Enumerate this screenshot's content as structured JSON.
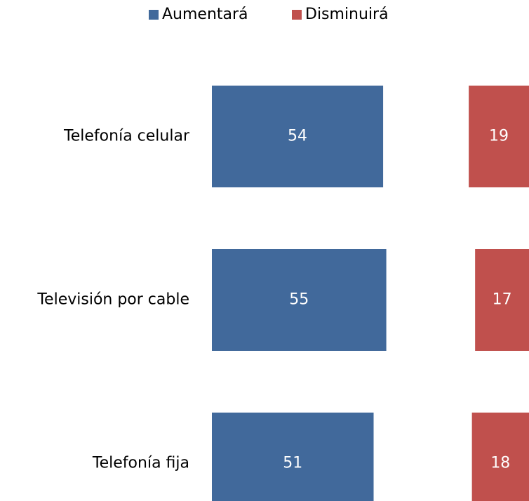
{
  "chart_data": {
    "type": "bar",
    "orientation": "horizontal",
    "legend": "top",
    "categories": [
      "Telefonía celular",
      "Televisión por cable",
      "Telefonía fija"
    ],
    "series": [
      {
        "name": "Aumentará",
        "color": "#41699b",
        "values": [
          54,
          55,
          51
        ]
      },
      {
        "name": "Disminuirá",
        "color": "#c0504d",
        "values": [
          19,
          17,
          18
        ]
      }
    ]
  }
}
